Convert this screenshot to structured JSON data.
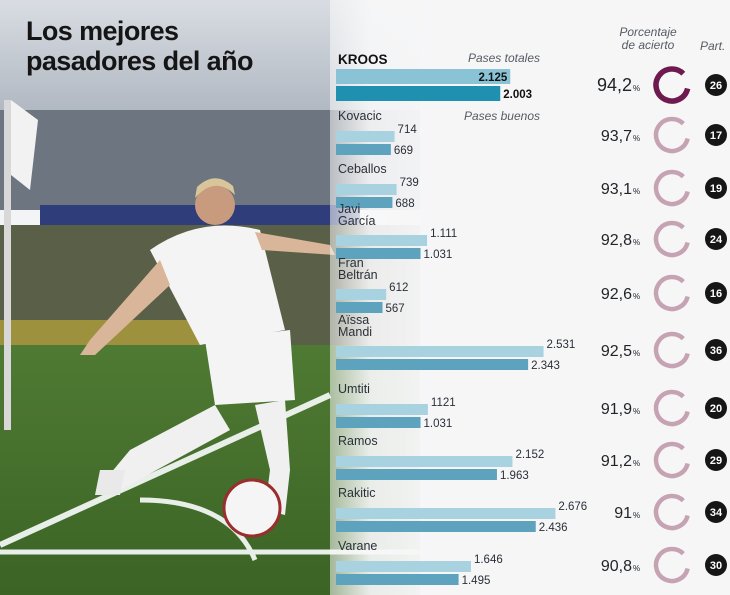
{
  "title": {
    "line1": "Los mejores",
    "line2": "pasadores del año"
  },
  "headers": {
    "total_passes": "Pases totales",
    "good_passes": "Pases buenos",
    "accuracy": "Porcentaje de acierto",
    "games": "Part."
  },
  "colors": {
    "total_bar": "#a9d2e1",
    "good_bar": "#5ea3be",
    "lead_total_bar": "#8ac2d6",
    "lead_good_bar": "#1f90b0",
    "ring": "#c6a3b3",
    "lead_ring": "#6e1a4f",
    "games_badge": "#161616"
  },
  "chart_data": {
    "type": "bar",
    "title": "Los mejores pasadores del año",
    "series": [
      {
        "name": "Pases totales",
        "values": [
          2125,
          714,
          739,
          1111,
          612,
          2531,
          1121,
          2152,
          2676,
          1646
        ]
      },
      {
        "name": "Pases buenos",
        "values": [
          2003,
          669,
          688,
          1031,
          567,
          2343,
          1031,
          1963,
          2436,
          1495
        ]
      }
    ],
    "players": [
      {
        "name": "KROOS",
        "total": 2125,
        "total_label": "2.125",
        "good": 2003,
        "good_label": "2.003",
        "pct": 94.2,
        "pct_label": "94,2",
        "games": 26
      },
      {
        "name": "Kovacic",
        "total": 714,
        "total_label": "714",
        "good": 669,
        "good_label": "669",
        "pct": 93.7,
        "pct_label": "93,7",
        "games": 17
      },
      {
        "name": "Ceballos",
        "total": 739,
        "total_label": "739",
        "good": 688,
        "good_label": "688",
        "pct": 93.1,
        "pct_label": "93,1",
        "games": 19
      },
      {
        "name": "Javi García",
        "total": 1111,
        "total_label": "1.111",
        "good": 1031,
        "good_label": "1.031",
        "pct": 92.8,
        "pct_label": "92,8",
        "games": 24
      },
      {
        "name": "Fran Beltrán",
        "total": 612,
        "total_label": "612",
        "good": 567,
        "good_label": "567",
        "pct": 92.6,
        "pct_label": "92,6",
        "games": 16
      },
      {
        "name": "Aïssa Mandi",
        "total": 2531,
        "total_label": "2.531",
        "good": 2343,
        "good_label": "2.343",
        "pct": 92.5,
        "pct_label": "92,5",
        "games": 36
      },
      {
        "name": "Umtiti",
        "total": 1121,
        "total_label": "1121",
        "good": 1031,
        "good_label": "1.031",
        "pct": 91.9,
        "pct_label": "91,9",
        "games": 20
      },
      {
        "name": "Ramos",
        "total": 2152,
        "total_label": "2.152",
        "good": 1963,
        "good_label": "1.963",
        "pct": 91.2,
        "pct_label": "91,2",
        "games": 29
      },
      {
        "name": "Rakitic",
        "total": 2676,
        "total_label": "2.676",
        "good": 2436,
        "good_label": "2.436",
        "pct": 91,
        "pct_label": "91",
        "games": 34
      },
      {
        "name": "Varane",
        "total": 1646,
        "total_label": "1.646",
        "good": 1495,
        "good_label": "1.495",
        "pct": 90.8,
        "pct_label": "90,8",
        "games": 30
      }
    ],
    "pct_unit": "%"
  }
}
